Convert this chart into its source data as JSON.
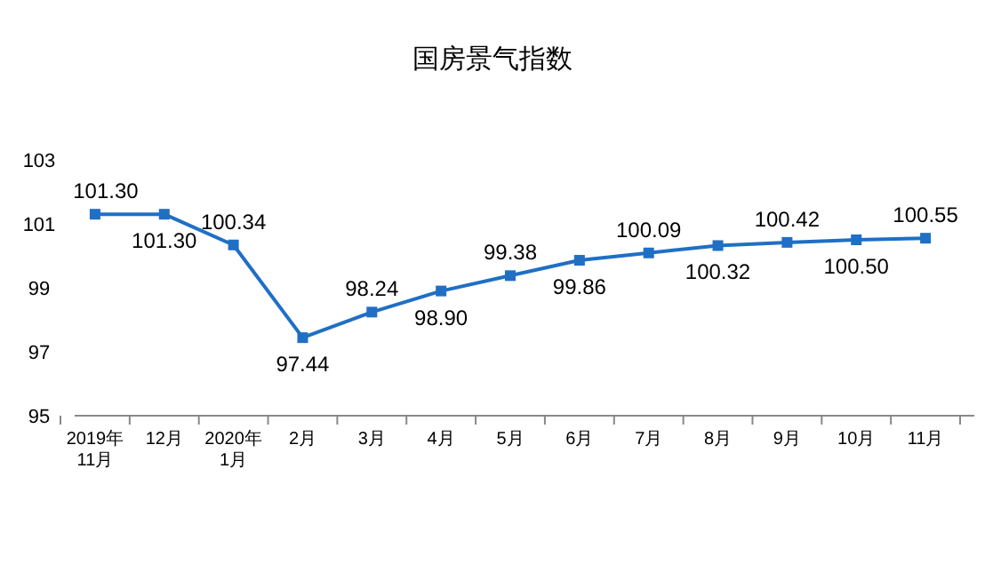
{
  "chart_data": {
    "type": "line",
    "title": "国房景气指数",
    "categories": [
      "2019年\n11月",
      "12月",
      "2020年\n1月",
      "2月",
      "3月",
      "4月",
      "5月",
      "6月",
      "7月",
      "8月",
      "9月",
      "10月",
      "11月"
    ],
    "series": [
      {
        "color": "#1f6fc5",
        "values": [
          101.3,
          101.3,
          100.34,
          97.44,
          98.24,
          98.9,
          99.38,
          99.86,
          100.09,
          100.32,
          100.42,
          100.5,
          100.55
        ],
        "value_labels": [
          "101.30",
          "101.30",
          "100.34",
          "97.44",
          "98.24",
          "98.90",
          "99.38",
          "99.86",
          "100.09",
          "100.32",
          "100.42",
          "100.50",
          "100.55"
        ]
      }
    ],
    "ylim": [
      95,
      103
    ],
    "yticks": [
      95,
      97,
      99,
      101,
      103
    ],
    "grid": false,
    "marker": "square",
    "line_style": "solid"
  }
}
